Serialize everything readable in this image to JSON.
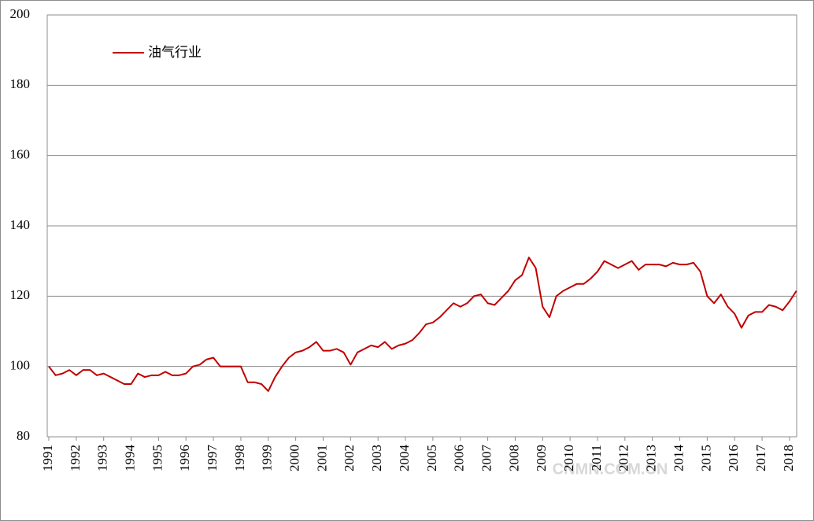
{
  "chart_data": {
    "type": "line",
    "categories": [
      "1991",
      null,
      null,
      null,
      "1992",
      null,
      null,
      null,
      "1993",
      null,
      null,
      null,
      "1994",
      null,
      null,
      null,
      "1995",
      null,
      null,
      null,
      "1996",
      null,
      null,
      null,
      "1997",
      null,
      null,
      null,
      "1998",
      null,
      null,
      null,
      "1999",
      null,
      null,
      null,
      "2000",
      null,
      null,
      null,
      "2001",
      null,
      null,
      null,
      "2002",
      null,
      null,
      null,
      "2003",
      null,
      null,
      null,
      "2004",
      null,
      null,
      null,
      "2005",
      null,
      null,
      null,
      "2006",
      null,
      null,
      null,
      "2007",
      null,
      null,
      null,
      "2008",
      null,
      null,
      null,
      "2009",
      null,
      null,
      null,
      "2010",
      null,
      null,
      null,
      "2011",
      null,
      null,
      null,
      "2012",
      null,
      null,
      null,
      "2013",
      null,
      null,
      null,
      "2014",
      null,
      null,
      null,
      "2015",
      null,
      null,
      null,
      "2016",
      null,
      null,
      null,
      "2017",
      null,
      null,
      null,
      "2018",
      null
    ],
    "series": [
      {
        "name": "油气行业",
        "color": "#c00000",
        "values": [
          100,
          97.5,
          98,
          99,
          97.5,
          99,
          99,
          97.5,
          98,
          97,
          96,
          95,
          95,
          98,
          97,
          97.5,
          97.5,
          98.5,
          97.5,
          97.5,
          98,
          100,
          100.5,
          102,
          102.5,
          100,
          100,
          100,
          100,
          95.5,
          95.5,
          95,
          93,
          97,
          100,
          102.5,
          104,
          104.5,
          105.5,
          107,
          104.5,
          104.5,
          105,
          104,
          100.5,
          104,
          105,
          106,
          105.5,
          107,
          105,
          106,
          106.5,
          107.5,
          109.5,
          112,
          112.5,
          114,
          116,
          118,
          117,
          118,
          120,
          120.5,
          118,
          117.5,
          119.5,
          121.5,
          124.5,
          126,
          131,
          128,
          117,
          114,
          120,
          121.5,
          122.5,
          123.5,
          123.5,
          125,
          127,
          130,
          129,
          128,
          129,
          130,
          127.5,
          129,
          129,
          129,
          128.5,
          129.5,
          129,
          129,
          129.5,
          127,
          120,
          118,
          120.5,
          117,
          115,
          111,
          114.5,
          115.5,
          115.5,
          117.5,
          117,
          116,
          118.5,
          121.5
        ]
      }
    ],
    "ylim": [
      80,
      200
    ],
    "yticks": [
      80,
      100,
      120,
      140,
      160,
      180,
      200
    ],
    "grid": true,
    "legend": "top-left",
    "watermark": "CNMN.COM.CN"
  }
}
